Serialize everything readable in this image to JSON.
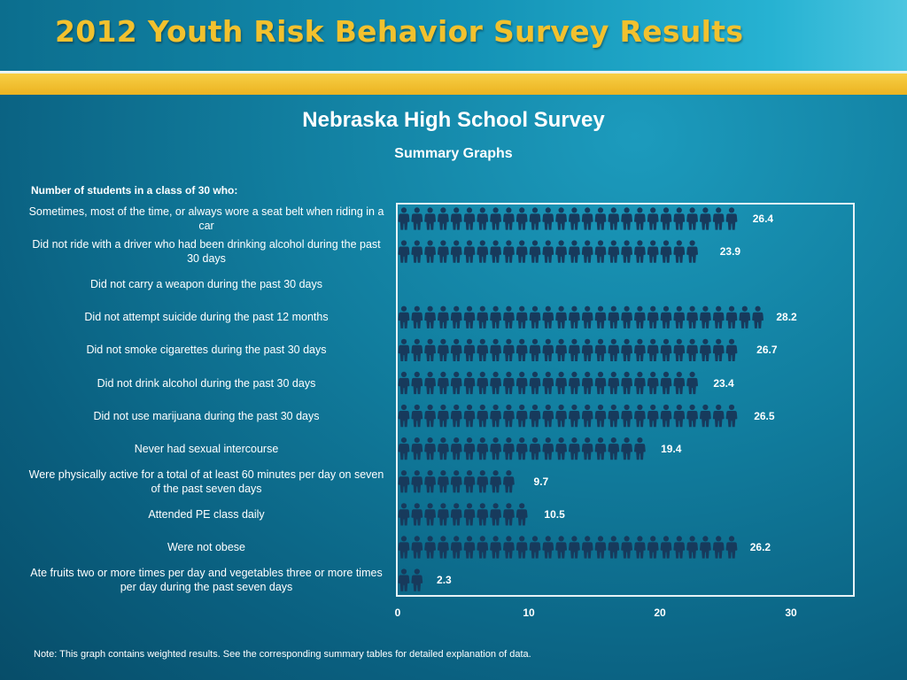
{
  "slide": {
    "title": "2012 Youth Risk Behavior Survey Results",
    "survey_title": "Nebraska High School Survey",
    "survey_subtitle": "Summary Graphs",
    "intro_label": "Number of students in a class of 30 who:",
    "footnote": "Note: This graph contains weighted results. See the corresponding summary tables for detailed explanation of data."
  },
  "colors": {
    "figure": "#173a5c",
    "frame": "#e6f2f6",
    "title": "#f2c12e",
    "gold_band": "#f0bf2e"
  },
  "chart_data": {
    "type": "bar",
    "unit": "students out of 30",
    "categories": [
      "Sometimes, most of the time, or always wore a seat belt when riding in a car",
      "Did not ride with a driver who had been drinking alcohol during the past 30 days",
      "Did not carry a weapon during the past 30 days",
      "Did not attempt suicide during the past 12 months",
      "Did not smoke cigarettes during the past 30 days",
      "Did not drink alcohol during the past 30 days",
      "Did not use marijuana during the past 30 days",
      "Never had sexual intercourse",
      "Were physically active for a total of at least 60 minutes per day on seven of the past seven days",
      "Attended PE class daily",
      "Were not obese",
      "Ate fruits two or more times per day and vegetables three or more times per day during the past seven days"
    ],
    "values": [
      26.4,
      23.9,
      null,
      28.2,
      26.7,
      23.4,
      26.5,
      19.4,
      9.7,
      10.5,
      26.2,
      2.3
    ],
    "value_labels": [
      "26.4",
      "23.9",
      "",
      "28.2",
      "26.7",
      "23.4",
      "26.5",
      "19.4",
      "9.7",
      "10.5",
      "26.2",
      "2.3"
    ],
    "xlim": [
      0,
      30
    ],
    "xticks": [
      0,
      10,
      20,
      30
    ],
    "xtick_labels": [
      "0",
      "10",
      "20",
      "30"
    ]
  }
}
